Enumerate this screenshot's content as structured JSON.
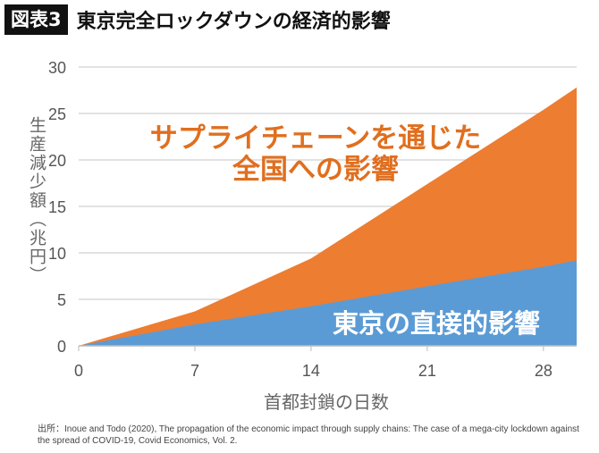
{
  "header": {
    "badge": "図表3",
    "title": "東京完全ロックダウンの経済的影響"
  },
  "chart_data": {
    "type": "area",
    "stacked": false,
    "x": [
      0,
      7,
      14,
      21,
      28,
      30
    ],
    "series": [
      {
        "label": "サプライチェーンを通じた全国への影響",
        "values": [
          0,
          3.7,
          9.4,
          17.4,
          25.4,
          27.8
        ],
        "color": "#ED7D31"
      },
      {
        "label": "東京の直接的影響",
        "values": [
          0,
          2.3,
          4.25,
          6.4,
          8.5,
          9.2
        ],
        "color": "#5B9BD5"
      }
    ],
    "annotations": {
      "orange_line1": "サプライチェーンを通じた",
      "orange_line2": "全国への影響",
      "blue": "東京の直接的影響"
    },
    "xlabel": "首都封鎖の日数",
    "ylabel": "生産減少額（兆円）",
    "xticks": [
      "0",
      "7",
      "14",
      "21",
      "28"
    ],
    "yticks": [
      "0",
      "5",
      "10",
      "15",
      "20",
      "25",
      "30"
    ],
    "xlim": [
      0,
      30
    ],
    "ylim": [
      0,
      30
    ],
    "grid": true
  },
  "source": "出所：Inoue and Todo (2020), The propagation of the economic impact through supply chains: The case of a mega-city lockdown against the spread of COVID-19, Covid Economics, Vol. 2."
}
